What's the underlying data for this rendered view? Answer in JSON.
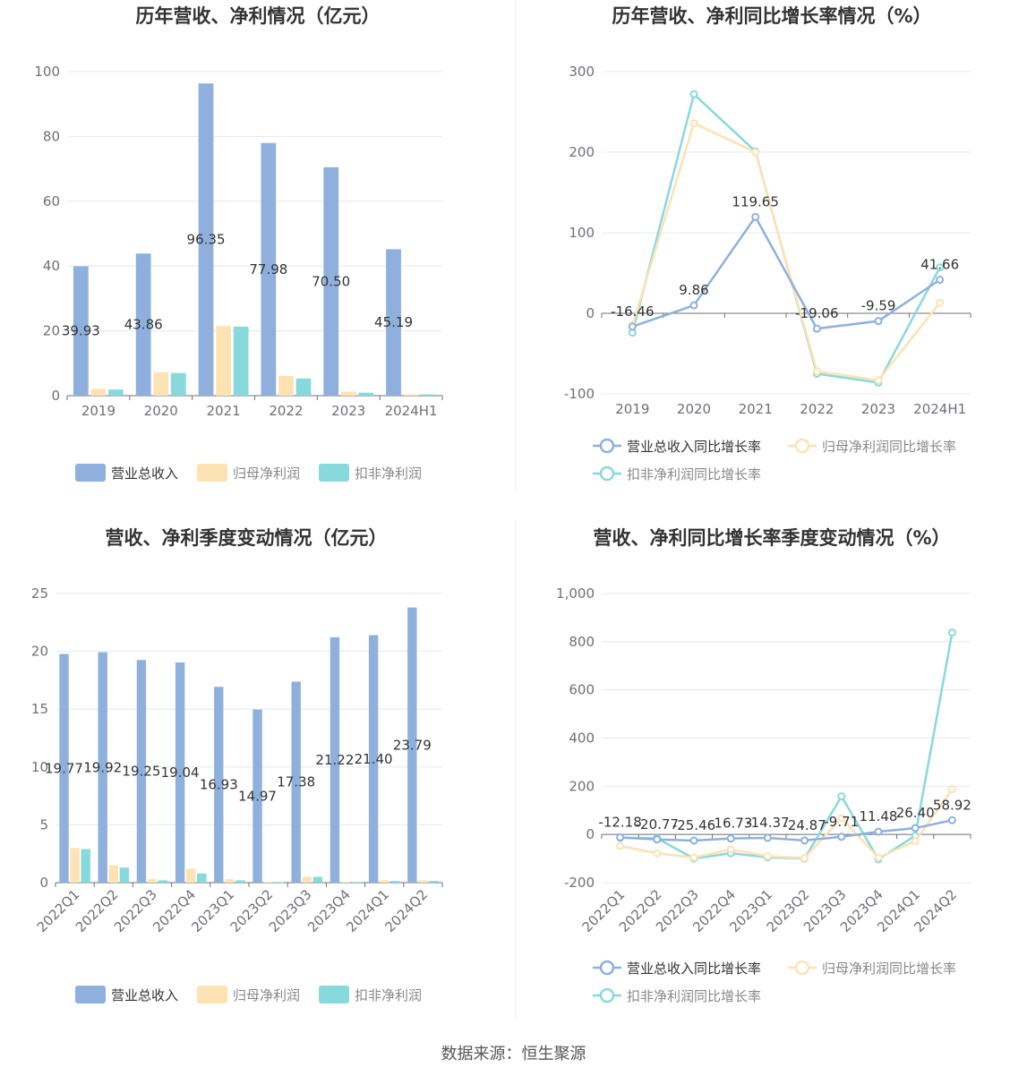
{
  "colors": {
    "revenue": "#8fb0dd",
    "net_profit": "#fde2b3",
    "deducted_profit": "#88d9dc",
    "grid": "#e6e8ee",
    "axis": "#6e7079",
    "divider": "#eeeeee"
  },
  "legend_bar": [
    "营业总收入",
    "归母净利润",
    "扣非净利润"
  ],
  "legend_line": [
    "营业总收入同比增长率",
    "归母净利润同比增长率",
    "扣非净利润同比增长率"
  ],
  "source": "数据来源：恒生聚源",
  "chart_data": [
    {
      "type": "bar",
      "title": "历年营收、净利情况（亿元）",
      "categories": [
        "2019",
        "2020",
        "2021",
        "2022",
        "2023",
        "2024H1"
      ],
      "ylim": [
        0,
        100
      ],
      "yticks": [
        0,
        20,
        40,
        60,
        80,
        100
      ],
      "series": [
        {
          "name": "营业总收入",
          "values": [
            39.93,
            43.86,
            96.35,
            77.98,
            70.5,
            45.19
          ]
        },
        {
          "name": "归母净利润",
          "values": [
            2.1,
            7.2,
            21.5,
            6.1,
            1.2,
            0.4
          ]
        },
        {
          "name": "扣非净利润",
          "values": [
            1.9,
            7.0,
            21.3,
            5.3,
            0.9,
            0.4
          ]
        }
      ],
      "labels": [
        "39.93",
        "43.86",
        "96.35",
        "77.98",
        "70.50",
        "45.19"
      ],
      "legend_position": "bottom",
      "grid": true
    },
    {
      "type": "line",
      "title": "历年营收、净利同比增长率情况（%）",
      "categories": [
        "2019",
        "2020",
        "2021",
        "2022",
        "2023",
        "2024H1"
      ],
      "ylim": [
        -100,
        300
      ],
      "yticks": [
        -100,
        0,
        100,
        200,
        300
      ],
      "series": [
        {
          "name": "营业总收入同比增长率",
          "values": [
            -16.46,
            9.86,
            119.65,
            -19.06,
            -9.59,
            41.66
          ]
        },
        {
          "name": "归母净利润同比增长率",
          "values": [
            -15,
            236,
            200,
            -72,
            -83,
            13
          ]
        },
        {
          "name": "扣非净利润同比增长率",
          "values": [
            -24,
            272,
            201,
            -75,
            -86,
            57
          ]
        }
      ],
      "labels": [
        "-16.46",
        "9.86",
        "119.65",
        "-19.06",
        "-9.59",
        "41.66"
      ],
      "legend_position": "bottom",
      "grid": true
    },
    {
      "type": "bar",
      "title": "营收、净利季度变动情况（亿元）",
      "categories": [
        "2022Q1",
        "2022Q2",
        "2022Q3",
        "2022Q4",
        "2023Q1",
        "2023Q2",
        "2023Q3",
        "2023Q4",
        "2024Q1",
        "2024Q2"
      ],
      "ylim": [
        0,
        25
      ],
      "yticks": [
        0,
        5,
        10,
        15,
        20,
        25
      ],
      "series": [
        {
          "name": "营业总收入",
          "values": [
            19.77,
            19.92,
            19.25,
            19.04,
            16.93,
            14.97,
            17.38,
            21.22,
            21.4,
            23.79
          ]
        },
        {
          "name": "归母净利润",
          "values": [
            3.0,
            1.5,
            0.3,
            1.2,
            0.3,
            0.05,
            0.5,
            0.05,
            0.2,
            0.2
          ]
        },
        {
          "name": "扣非净利润",
          "values": [
            2.9,
            1.3,
            0.2,
            0.8,
            0.2,
            0.05,
            0.5,
            0.05,
            0.15,
            0.15
          ]
        }
      ],
      "labels": [
        "19.77",
        "19.92",
        "19.25",
        "19.04",
        "16.93",
        "14.97",
        "17.38",
        "21.22",
        "21.40",
        "23.79"
      ],
      "legend_position": "bottom",
      "grid": true
    },
    {
      "type": "line",
      "title": "营收、净利同比增长率季度变动情况（%）",
      "categories": [
        "2022Q1",
        "2022Q2",
        "2022Q3",
        "2022Q4",
        "2023Q1",
        "2023Q2",
        "2023Q3",
        "2023Q4",
        "2024Q1",
        "2024Q2"
      ],
      "ylim": [
        -200,
        1000
      ],
      "yticks": [
        -200,
        0,
        200,
        400,
        600,
        800,
        1000
      ],
      "ytick_labels": [
        "-200",
        "0",
        "200",
        "400",
        "600",
        "800",
        "1,000"
      ],
      "series": [
        {
          "name": "营业总收入同比增长率",
          "values": [
            -12.18,
            -20.77,
            -25.46,
            -16.73,
            -14.37,
            -24.87,
            -9.71,
            11.48,
            26.4,
            58.92
          ]
        },
        {
          "name": "归母净利润同比增长率",
          "values": [
            -48,
            -78,
            -96,
            -62,
            -90,
            -98,
            68,
            -96,
            -28,
            188
          ]
        },
        {
          "name": "扣非净利润同比增长率",
          "values": [
            -14,
            -16,
            -100,
            -78,
            -95,
            -100,
            158,
            -103,
            -5,
            838
          ]
        }
      ],
      "labels": [
        "-12.18",
        "-20.77",
        "-25.46",
        "-16.73",
        "-14.37",
        "-24.87",
        "-9.71",
        "11.48",
        "26.40",
        "58.92"
      ],
      "legend_position": "bottom",
      "grid": true
    }
  ]
}
